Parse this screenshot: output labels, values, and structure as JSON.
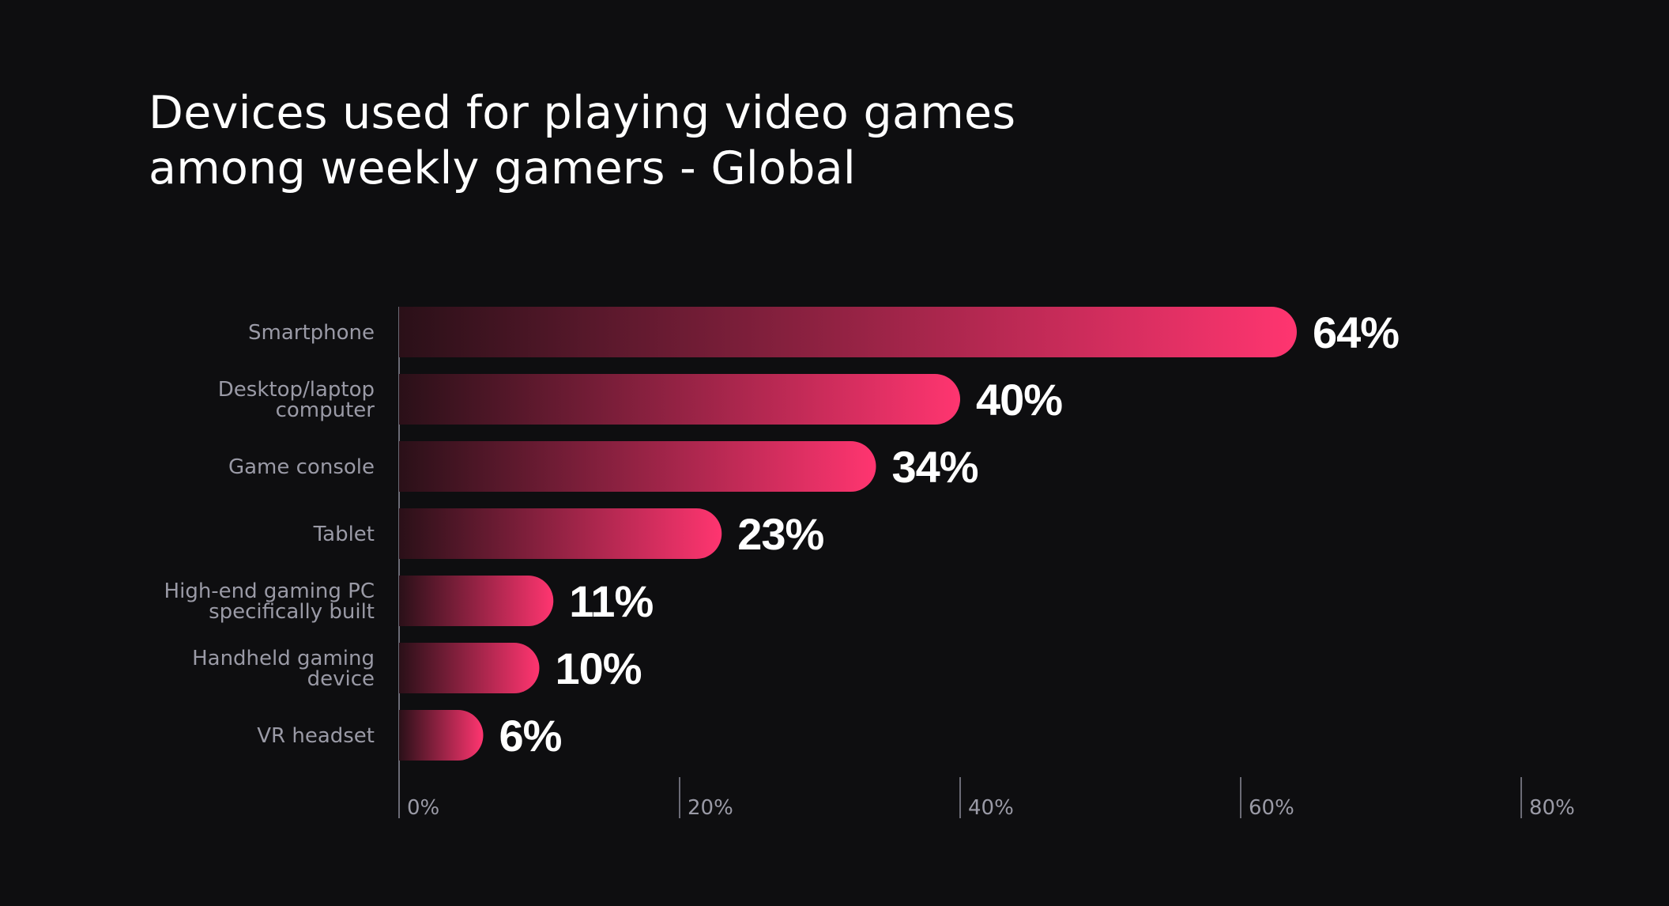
{
  "title_lines": [
    "Devices used for playing video games",
    "among weekly gamers - Global"
  ],
  "colors": {
    "background": "#0e0e10",
    "bar_start": "#2a1018",
    "bar_end": "#ff3570",
    "axis": "#6b6b76",
    "label": "#9a9aa6",
    "value": "#ffffff"
  },
  "chart_data": {
    "type": "bar",
    "orientation": "horizontal",
    "title": "Devices used for playing video games among weekly gamers - Global",
    "categories": [
      [
        "Smartphone"
      ],
      [
        "Desktop/laptop",
        "computer"
      ],
      [
        "Game console"
      ],
      [
        "Tablet"
      ],
      [
        "High-end gaming PC",
        "specifically built"
      ],
      [
        "Handheld gaming",
        "device"
      ],
      [
        "VR headset"
      ]
    ],
    "values": [
      64,
      40,
      34,
      23,
      11,
      10,
      6
    ],
    "value_labels": [
      "64%",
      "40%",
      "34%",
      "23%",
      "11%",
      "10%",
      "6%"
    ],
    "unit": "%",
    "xlim": [
      0,
      80
    ],
    "xticks": [
      0,
      20,
      40,
      60,
      80
    ],
    "xtick_labels": [
      "0%",
      "20%",
      "40%",
      "60%",
      "80%"
    ],
    "grid": false,
    "legend": "none"
  }
}
